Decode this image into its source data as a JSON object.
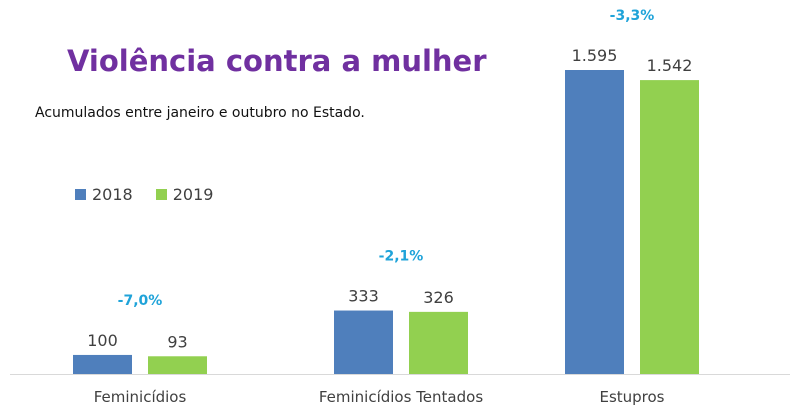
{
  "chart_data": {
    "type": "bar",
    "title": "Violência contra a mulher",
    "subtitle": "Acumulados entre janeiro e outubro no Estado.",
    "categories": [
      "Feminicídios",
      "Feminicídios Tentados",
      "Estupros"
    ],
    "series": [
      {
        "name": "2018",
        "values": [
          100,
          333,
          1595
        ],
        "labels": [
          "100",
          "333",
          "1.595"
        ]
      },
      {
        "name": "2019",
        "values": [
          93,
          326,
          1542
        ],
        "labels": [
          "93",
          "326",
          "1.542"
        ]
      }
    ],
    "annotations": [
      "-7,0%",
      "-2,1%",
      "-3,3%"
    ],
    "ylim": [
      0,
      1700
    ],
    "grid": false,
    "legend_position": "left"
  },
  "colors": {
    "series_2018": "#4f7fbc",
    "series_2019": "#92d050",
    "title": "#7030a0",
    "annotation": "#1fa3d9"
  }
}
